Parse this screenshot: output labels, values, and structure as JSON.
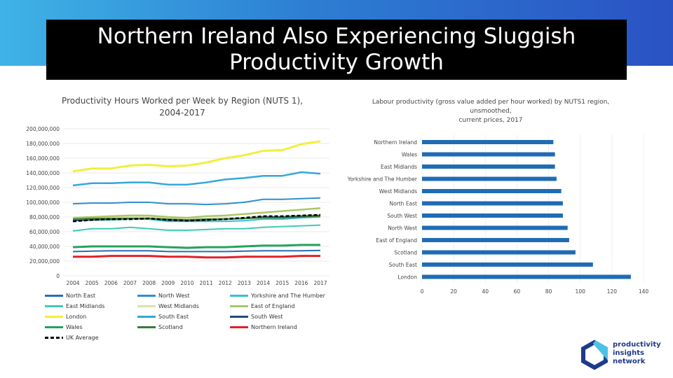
{
  "slide": {
    "title_line1": "Northern Ireland Also Experiencing Sluggish",
    "title_line2": "Productivity Growth"
  },
  "logo": {
    "line1": "productivity",
    "line2": "insights",
    "line3": "network"
  },
  "chart_data": [
    {
      "type": "line",
      "title_line1": "Productivity Hours Worked per Week by Region (NUTS 1),",
      "title_line2": "2004-2017",
      "x": [
        "2004",
        "2005",
        "2006",
        "2007",
        "2008",
        "2009",
        "2010",
        "2011",
        "2012",
        "2013",
        "2014",
        "2015",
        "2016",
        "2017"
      ],
      "ylim": [
        0,
        200000000
      ],
      "yticks": [
        0,
        20000000,
        40000000,
        60000000,
        80000000,
        100000000,
        120000000,
        140000000,
        160000000,
        180000000,
        200000000
      ],
      "ytick_labels": [
        "0",
        "20,000,000",
        "40,000,000",
        "60,000,000",
        "80,000,000",
        "100,000,000",
        "120,000,000",
        "140,000,000",
        "160,000,000",
        "180,000,000",
        "200,000,000"
      ],
      "grid": true,
      "legend_position": "bottom",
      "series": [
        {
          "name": "North East",
          "color": "#2b6cb5",
          "width": 2,
          "dash": "",
          "values": [
            33,
            33.5,
            34,
            34,
            34,
            33,
            33,
            33,
            33,
            33.5,
            34,
            34,
            34,
            34.5
          ]
        },
        {
          "name": "North West",
          "color": "#2f8fd0",
          "width": 2,
          "dash": "",
          "values": [
            98,
            99,
            99,
            100,
            100,
            98,
            98,
            97,
            98,
            100,
            104,
            104,
            105,
            106
          ]
        },
        {
          "name": "Yorkshire and The Humber",
          "color": "#34c3cf",
          "width": 2,
          "dash": "",
          "values": [
            75,
            76,
            76,
            77,
            77,
            74,
            74,
            74,
            74,
            75,
            77,
            77,
            79,
            80
          ]
        },
        {
          "name": "East Midlands",
          "color": "#3dcbb5",
          "width": 2,
          "dash": "",
          "values": [
            61,
            64,
            64,
            66,
            64,
            62,
            62,
            63,
            64,
            64,
            66,
            67,
            68,
            69
          ]
        },
        {
          "name": "West Midlands",
          "color": "#d6e3b0",
          "width": 2,
          "dash": "",
          "values": [
            78,
            79,
            79,
            80,
            80,
            78,
            78,
            78,
            79,
            79,
            81,
            81,
            82,
            83
          ]
        },
        {
          "name": "East of England",
          "color": "#a9c765",
          "width": 2.5,
          "dash": "",
          "values": [
            79,
            80,
            81,
            82,
            82,
            80,
            79,
            81,
            82,
            84,
            86,
            88,
            90,
            92
          ]
        },
        {
          "name": "London",
          "color": "#f2ef3c",
          "width": 3,
          "dash": "",
          "values": [
            142,
            146,
            146,
            150,
            151,
            149,
            150,
            154,
            160,
            164,
            170,
            171,
            179,
            183
          ]
        },
        {
          "name": "South East",
          "color": "#35a7da",
          "width": 2.5,
          "dash": "",
          "values": [
            123,
            126,
            126,
            127,
            127,
            124,
            124,
            127,
            131,
            133,
            136,
            136,
            141,
            139
          ]
        },
        {
          "name": "South West",
          "color": "#1f4f7a",
          "width": 2,
          "dash": "",
          "values": [
            75,
            76,
            77,
            78,
            78,
            76,
            75,
            76,
            77,
            78,
            80,
            80,
            81,
            82
          ]
        },
        {
          "name": "Wales",
          "color": "#25a35c",
          "width": 3,
          "dash": "",
          "values": [
            39,
            40,
            40,
            40,
            40,
            39,
            38,
            39,
            39,
            40,
            41,
            41,
            42,
            42
          ]
        },
        {
          "name": "Scotland",
          "color": "#3c7a3a",
          "width": 2,
          "dash": "",
          "values": [
            77,
            78,
            78,
            78,
            78,
            77,
            76,
            77,
            77,
            78,
            79,
            79,
            80,
            81
          ]
        },
        {
          "name": "Northern Ireland",
          "color": "#e0212a",
          "width": 3,
          "dash": "",
          "values": [
            26,
            26,
            27,
            27,
            27,
            26,
            26,
            25,
            25,
            26,
            26,
            26,
            27,
            27
          ]
        },
        {
          "name": "UK Average",
          "color": "#000000",
          "width": 2.5,
          "dash": "5,3",
          "values": [
            74,
            76,
            77,
            77,
            78,
            76,
            75,
            76,
            77,
            79,
            81,
            81,
            82,
            83
          ]
        }
      ]
    },
    {
      "type": "bar",
      "orientation": "horizontal",
      "title_line1": "Labour productivity (gross value added per hour worked) by NUTS1 region, unsmoothed,",
      "title_line2": "current prices, 2017",
      "categories": [
        "Northern Ireland",
        "Wales",
        "East Midlands",
        "Yorkshire and The Humber",
        "West Midlands",
        "North East",
        "South West",
        "North West",
        "East of England",
        "Scotland",
        "South East",
        "London"
      ],
      "values": [
        83,
        84,
        84,
        85,
        88,
        89,
        89,
        92,
        93,
        97,
        108,
        132
      ],
      "xlim": [
        0,
        140
      ],
      "xticks": [
        "0",
        "20",
        "40",
        "60",
        "80",
        "100",
        "120",
        "140"
      ],
      "bar_color": "#1f6cb5",
      "grid": true
    }
  ]
}
